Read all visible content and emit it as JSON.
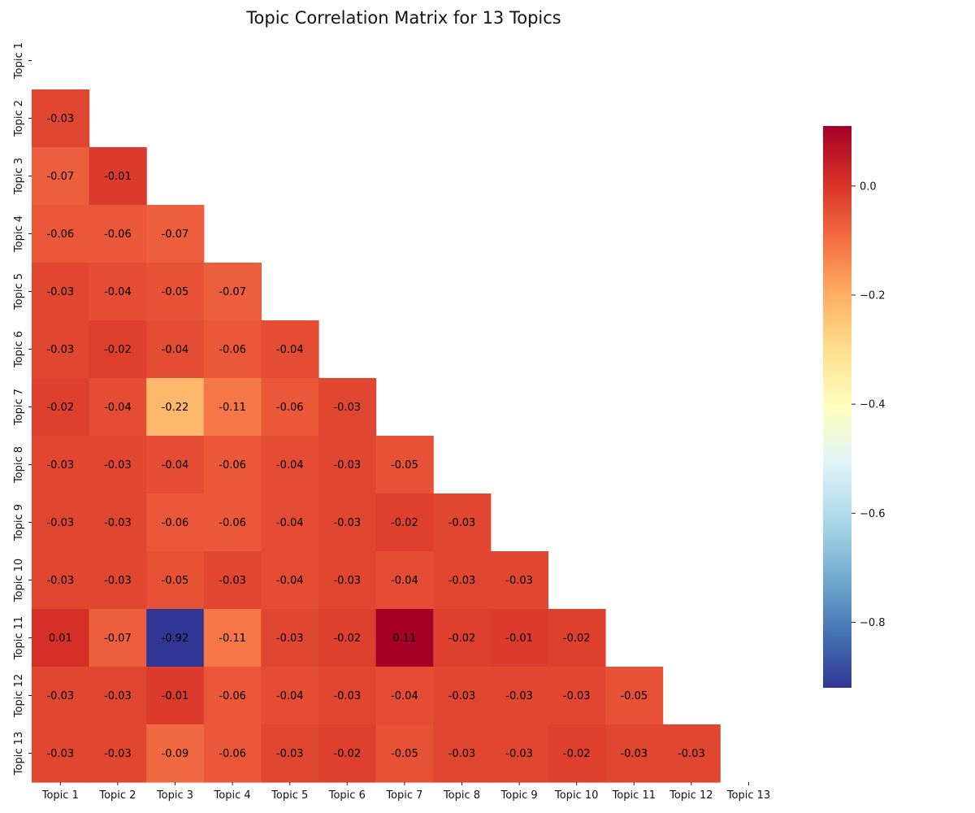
{
  "chart_data": {
    "type": "heatmap",
    "title": "Topic Correlation Matrix for 13 Topics",
    "xlabel": "",
    "ylabel": "",
    "labels": [
      "Topic 1",
      "Topic 2",
      "Topic 3",
      "Topic 4",
      "Topic 5",
      "Topic 6",
      "Topic 7",
      "Topic 8",
      "Topic 9",
      "Topic 10",
      "Topic 11",
      "Topic 12",
      "Topic 13"
    ],
    "mask": "upper-triangle-including-diagonal",
    "lower_values": [
      [],
      [
        -0.03
      ],
      [
        -0.07,
        -0.01
      ],
      [
        -0.06,
        -0.06,
        -0.07
      ],
      [
        -0.03,
        -0.04,
        -0.05,
        -0.07
      ],
      [
        -0.03,
        -0.02,
        -0.04,
        -0.06,
        -0.04
      ],
      [
        -0.02,
        -0.04,
        -0.22,
        -0.11,
        -0.06,
        -0.03
      ],
      [
        -0.03,
        -0.03,
        -0.04,
        -0.06,
        -0.04,
        -0.03,
        -0.05
      ],
      [
        -0.03,
        -0.03,
        -0.06,
        -0.06,
        -0.04,
        -0.03,
        -0.02,
        -0.03
      ],
      [
        -0.03,
        -0.03,
        -0.05,
        -0.03,
        -0.04,
        -0.03,
        -0.04,
        -0.03,
        -0.03
      ],
      [
        0.01,
        -0.07,
        -0.92,
        -0.11,
        -0.03,
        -0.02,
        0.11,
        -0.02,
        -0.01,
        -0.02
      ],
      [
        -0.03,
        -0.03,
        -0.01,
        -0.06,
        -0.04,
        -0.03,
        -0.04,
        -0.03,
        -0.03,
        -0.03,
        -0.05
      ],
      [
        -0.03,
        -0.03,
        -0.09,
        -0.06,
        -0.03,
        -0.02,
        -0.05,
        -0.03,
        -0.03,
        -0.02,
        -0.03,
        -0.03
      ]
    ],
    "colormap": "RdYlBu_r",
    "vmin": -0.92,
    "vmax": 0.11,
    "colorbar_ticks": [
      "0.0",
      "−0.2",
      "−0.4",
      "−0.6",
      "−0.8"
    ],
    "colorbar_tick_values": [
      0.0,
      -0.2,
      -0.4,
      -0.6,
      -0.8
    ]
  }
}
